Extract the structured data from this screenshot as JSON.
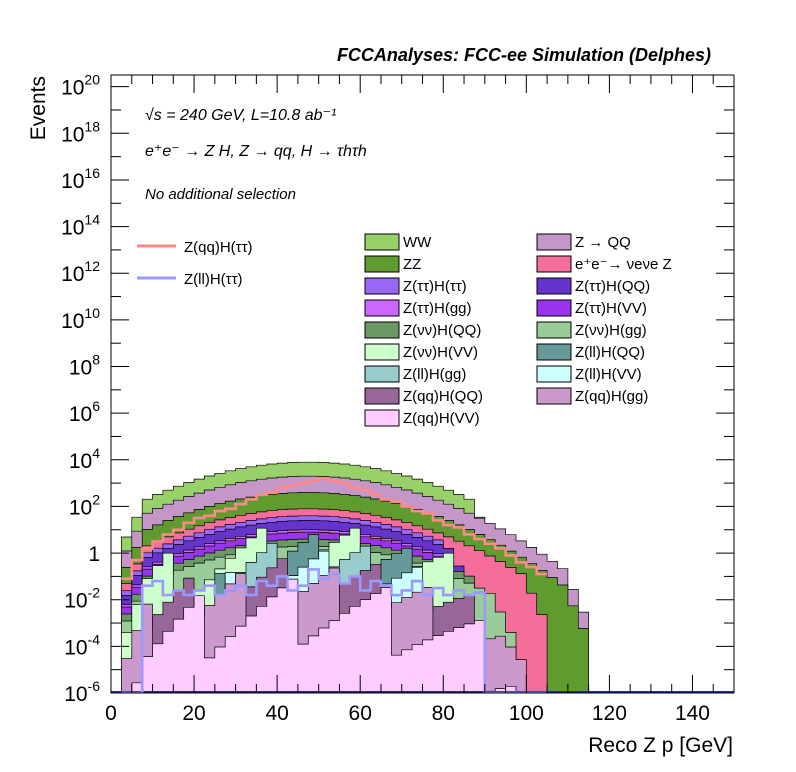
{
  "chart_data": {
    "type": "histogram-stacked",
    "title": "FCCAnalyses: FCC-ee Simulation (Delphes)",
    "xlabel": "Reco Z p [GeV]",
    "ylabel": "Events",
    "xlim": [
      0,
      150
    ],
    "ylim_log10": [
      -6,
      20.5
    ],
    "x_ticks": [
      "0",
      "20",
      "40",
      "60",
      "80",
      "100",
      "120",
      "140"
    ],
    "y_ticks": [
      {
        "exp": -6,
        "label": "10",
        "sup": "-6"
      },
      {
        "exp": -4,
        "label": "10",
        "sup": "-4"
      },
      {
        "exp": -2,
        "label": "10",
        "sup": "-2"
      },
      {
        "exp": 0,
        "label": "1",
        "sup": ""
      },
      {
        "exp": 2,
        "label": "10",
        "sup": "2"
      },
      {
        "exp": 4,
        "label": "10",
        "sup": "4"
      },
      {
        "exp": 6,
        "label": "10",
        "sup": "6"
      },
      {
        "exp": 8,
        "label": "10",
        "sup": "8"
      },
      {
        "exp": 10,
        "label": "10",
        "sup": "10"
      },
      {
        "exp": 12,
        "label": "10",
        "sup": "12"
      },
      {
        "exp": 14,
        "label": "10",
        "sup": "14"
      },
      {
        "exp": 16,
        "label": "10",
        "sup": "16"
      },
      {
        "exp": 18,
        "label": "10",
        "sup": "18"
      },
      {
        "exp": 20,
        "label": "10",
        "sup": "20"
      }
    ],
    "annotations": {
      "energy": "√s = 240 GeV, L=10.8 ab⁻¹",
      "process": "e⁺e⁻ → Z H, Z → qq, H → τhτh",
      "selection": "No additional selection"
    },
    "bin_width": 2.5,
    "background_stack": [
      {
        "name": "WW",
        "color": "#98d06a",
        "peak_log10": 3.9,
        "x_start": 2.5,
        "x_end": 92.5
      },
      {
        "name": "Z → QQ",
        "color": "#c597c9",
        "peak_log10": 3.3,
        "x_start": 2.5,
        "x_end": 115
      },
      {
        "name": "ZZ",
        "color": "#5f9b2f",
        "peak_log10": 2.6,
        "x_start": 2.5,
        "x_end": 115
      },
      {
        "name": "e⁺e⁻→ νeνe Z",
        "color": "#f56e99",
        "peak_log10": 1.9,
        "x_start": 2.5,
        "x_end": 105
      },
      {
        "name": "Z(ττ)H(ττ)",
        "color": "#9966f5",
        "peak_log10": 1.6,
        "x_start": 2.5,
        "x_end": 85
      },
      {
        "name": "Z(ττ)H(QQ)",
        "color": "#6633cc",
        "peak_log10": 1.4,
        "x_start": 2.5,
        "x_end": 87.5
      },
      {
        "name": "Z(ττ)H(gg)",
        "color": "#cc66ff",
        "peak_log10": 1.0,
        "x_start": 2.5,
        "x_end": 85
      },
      {
        "name": "Z(ττ)H(VV)",
        "color": "#9933ee",
        "peak_log10": 0.9,
        "x_start": 2.5,
        "x_end": 85
      },
      {
        "name": "Z(νν)H(QQ)",
        "color": "#6b9966",
        "peak_log10": 0.6,
        "x_start": 2.5,
        "x_end": 92.5
      },
      {
        "name": "Z(νν)H(gg)",
        "color": "#99cc99",
        "peak_log10": 0.3,
        "x_start": 2.5,
        "x_end": 97.5
      },
      {
        "name": "Z(νν)H(VV)",
        "color": "#ccffcc",
        "peak_log10": -0.2,
        "x_start": 2.5,
        "x_end": 92.5
      },
      {
        "name": "Z(ll)H(QQ)",
        "color": "#669999",
        "peak_log10": -0.6,
        "x_start": 25,
        "x_end": 80
      },
      {
        "name": "Z(ll)H(gg)",
        "color": "#99cccc",
        "peak_log10": -0.9,
        "x_start": 25,
        "x_end": 80
      },
      {
        "name": "Z(ll)H(VV)",
        "color": "#ccffff",
        "peak_log10": -1.3,
        "x_start": 25,
        "x_end": 85
      },
      {
        "name": "Z(qq)H(QQ)",
        "color": "#996699",
        "peak_log10": -1.6,
        "x_start": 2.5,
        "x_end": 97.5
      },
      {
        "name": "Z(qq)H(gg)",
        "color": "#cc99cc",
        "peak_log10": -2.0,
        "x_start": 2.5,
        "x_end": 100
      },
      {
        "name": "Z(qq)H(VV)",
        "color": "#ffccff",
        "peak_log10": -2.5,
        "x_start": 2.5,
        "x_end": 102.5
      }
    ],
    "signal_lines": [
      {
        "name": "Z(qq)H(ττ)",
        "color": "#ff8888",
        "x_edges_start": 2.5,
        "values_log10": [
          -1.1,
          -0.3,
          0.2,
          0.5,
          0.8,
          1.0,
          1.3,
          1.5,
          1.6,
          1.8,
          1.9,
          2.1,
          2.3,
          2.5,
          2.6,
          2.8,
          2.9,
          3.0,
          3.1,
          3.2,
          3.1,
          3.0,
          2.8,
          2.7,
          2.5,
          2.3,
          2.2,
          2.0,
          1.8,
          1.7,
          1.4,
          1.2,
          1.1,
          0.8,
          0.6,
          0.4,
          0.2,
          -0.1,
          -0.4,
          -0.6,
          -0.9
        ]
      },
      {
        "name": "Z(ll)H(ττ)",
        "color": "#9999ff",
        "x_edges_start": 2.5,
        "values_log10": [
          -6,
          -6,
          -1.4,
          -1.2,
          -1.8,
          -1.6,
          -1.8,
          -1.6,
          -1.4,
          -1.8,
          -1.6,
          -1.4,
          -1.8,
          -1.2,
          -1.4,
          -1.0,
          -1.6,
          -1.4,
          -0.7,
          -1.1,
          -0.9,
          -1.3,
          -1.0,
          -1.6,
          -1.2,
          -1.4,
          -1.8,
          -1.6,
          -1.2,
          -1.8,
          -1.5,
          -1.8,
          -1.6,
          -1.8,
          -1.7,
          -6,
          -6,
          -6,
          -6,
          -6,
          -6
        ]
      }
    ],
    "legend": {
      "signals": [
        "Z(qq)H(ττ)",
        "Z(ll)H(ττ)"
      ],
      "backgrounds_col1": [
        "WW",
        "ZZ",
        "Z(ττ)H(ττ)",
        "Z(ττ)H(gg)",
        "Z(νν)H(QQ)",
        "Z(νν)H(VV)",
        "Z(ll)H(gg)",
        "Z(qq)H(QQ)",
        "Z(qq)H(VV)"
      ],
      "backgrounds_col2": [
        "Z → QQ",
        "e⁺e⁻→ νeνe Z",
        "Z(ττ)H(QQ)",
        "Z(ττ)H(VV)",
        "Z(νν)H(gg)",
        "Z(ll)H(QQ)",
        "Z(ll)H(VV)",
        "Z(qq)H(gg)"
      ]
    }
  }
}
